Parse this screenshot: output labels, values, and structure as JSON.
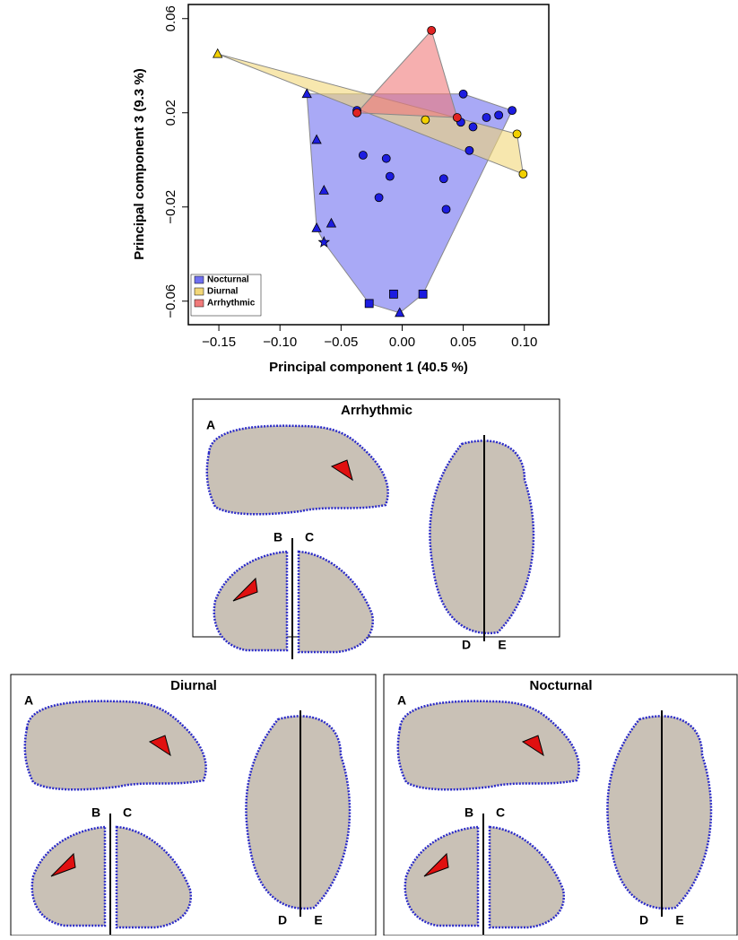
{
  "chart_data": {
    "type": "scatter",
    "xlabel": "Principal component 1 (40.5 %)",
    "ylabel": "Principal component 3 (9.3 %)",
    "xlim": [
      -0.175,
      0.12
    ],
    "ylim": [
      -0.07,
      0.066
    ],
    "xticks": [
      {
        "value": -0.15,
        "label": "−0.15"
      },
      {
        "value": -0.1,
        "label": "−0.10"
      },
      {
        "value": -0.05,
        "label": "−0.05"
      },
      {
        "value": 0,
        "label": "0.00"
      },
      {
        "value": 0.05,
        "label": "0.05"
      },
      {
        "value": 0.1,
        "label": "0.10"
      }
    ],
    "yticks": [
      {
        "value": -0.06,
        "label": "−0.06"
      },
      {
        "value": -0.02,
        "label": "−0.02"
      },
      {
        "value": 0.02,
        "label": "0.02"
      },
      {
        "value": 0.06,
        "label": "0.06"
      }
    ],
    "legend": "lower left",
    "hulls": true,
    "series": [
      {
        "name": "Nocturnal",
        "color": "#1c1ce0",
        "hull_color": "#7070f0",
        "x": [
          -0.078,
          -0.07,
          -0.064,
          -0.07,
          -0.058,
          -0.064,
          -0.027,
          -0.007,
          0.017,
          -0.002,
          -0.037,
          -0.032,
          -0.01,
          -0.019,
          -0.013,
          0.05,
          0.058,
          0.055,
          0.069,
          0.079,
          0.09,
          0.034,
          0.036,
          0.048
        ],
        "values": [
          0.028,
          0.0085,
          -0.013,
          -0.029,
          -0.027,
          -0.035,
          -0.061,
          -0.057,
          -0.057,
          -0.065,
          0.021,
          0.002,
          -0.007,
          -0.016,
          0.0006,
          0.028,
          0.014,
          0.004,
          0.018,
          0.019,
          0.021,
          -0.008,
          -0.021,
          0.016
        ],
        "markers": [
          "triangle",
          "triangle",
          "triangle",
          "triangle",
          "triangle",
          "star",
          "square",
          "square",
          "square",
          "triangle",
          "circle",
          "circle",
          "circle",
          "circle",
          "circle",
          "circle",
          "circle",
          "circle",
          "circle",
          "circle",
          "circle",
          "circle",
          "circle",
          "circle"
        ]
      },
      {
        "name": "Diurnal",
        "color": "#f2d000",
        "hull_color": "#f2d778",
        "x": [
          -0.151,
          0.019,
          0.094,
          0.099
        ],
        "values": [
          0.045,
          0.017,
          0.011,
          -0.006
        ],
        "markers": [
          "triangle",
          "circle",
          "circle",
          "circle"
        ]
      },
      {
        "name": "Arrhythmic",
        "color": "#e02222",
        "hull_color": "#f07a7a",
        "x": [
          0.024,
          -0.037,
          0.045
        ],
        "values": [
          0.055,
          0.02,
          0.018
        ],
        "markers": [
          "circle",
          "circle",
          "circle"
        ]
      }
    ]
  },
  "panels": [
    {
      "title": "Arrhythmic",
      "labels": [
        "A",
        "B",
        "C",
        "D",
        "E"
      ]
    },
    {
      "title": "Diurnal",
      "labels": [
        "A",
        "B",
        "C",
        "D",
        "E"
      ]
    },
    {
      "title": "Nocturnal",
      "labels": [
        "A",
        "B",
        "C",
        "D",
        "E"
      ]
    }
  ]
}
